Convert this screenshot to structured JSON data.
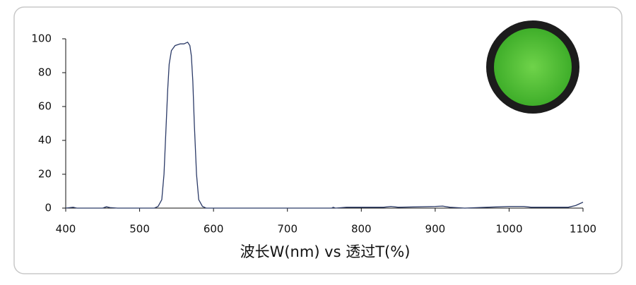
{
  "chart_data": {
    "type": "line",
    "x_label": "波长W(nm) vs 透过T(%)",
    "x": [
      400,
      410,
      415,
      450,
      455,
      460,
      470,
      520,
      525,
      530,
      533,
      535,
      538,
      540,
      543,
      548,
      555,
      560,
      565,
      568,
      570,
      572,
      574,
      577,
      580,
      585,
      590,
      760,
      762,
      765,
      780,
      830,
      840,
      850,
      900,
      910,
      920,
      940,
      970,
      1000,
      1020,
      1030,
      1080,
      1090,
      1095,
      1100
    ],
    "values": [
      0,
      0.5,
      0,
      0,
      0.8,
      0.3,
      0,
      0,
      1,
      5,
      20,
      40,
      70,
      85,
      93,
      96,
      97,
      97,
      98,
      96,
      90,
      75,
      50,
      20,
      5,
      1,
      0,
      0,
      0.5,
      0,
      0.5,
      0.5,
      1,
      0.5,
      1,
      1.2,
      0.5,
      0,
      0.5,
      1,
      1,
      0.5,
      0.5,
      1.5,
      2.5,
      3.5
    ],
    "color": "#2b3a67",
    "xlim": [
      400,
      1100
    ],
    "xticks": [
      400,
      500,
      600,
      700,
      800,
      900,
      1000,
      1100
    ],
    "ylim": [
      0,
      100
    ],
    "yticks": [
      0,
      20,
      40,
      60,
      80,
      100
    ]
  }
}
